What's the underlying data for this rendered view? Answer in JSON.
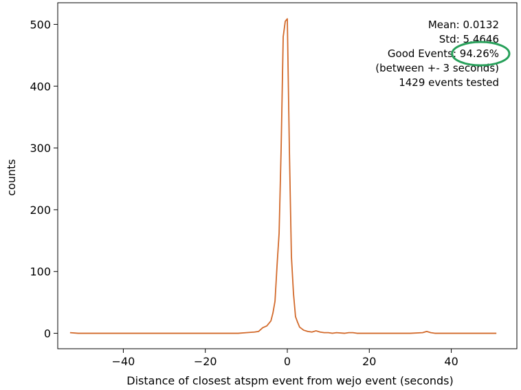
{
  "chart_data": {
    "type": "line",
    "title": "",
    "xlabel": "Distance of closest atspm event from wejo event (seconds)",
    "ylabel": "counts",
    "xlim": [
      -56,
      56
    ],
    "ylim": [
      -25,
      535
    ],
    "xticks": [
      -40,
      -20,
      0,
      20,
      40
    ],
    "xtick_labels": [
      "−40",
      "−20",
      "0",
      "20",
      "40"
    ],
    "yticks": [
      0,
      100,
      200,
      300,
      400,
      500
    ],
    "ytick_labels": [
      "0",
      "100",
      "200",
      "300",
      "400",
      "500"
    ],
    "grid": false,
    "series": [
      {
        "color": "#d2692a",
        "x": [
          -53,
          -51,
          -45,
          -40,
          -35,
          -30,
          -25,
          -20,
          -15,
          -12,
          -10,
          -8,
          -7,
          -6,
          -5,
          -4,
          -3.5,
          -3,
          -2.5,
          -2,
          -1.5,
          -1,
          -0.5,
          0,
          0.5,
          1,
          1.5,
          2,
          2.5,
          3,
          4,
          5,
          6,
          7,
          8,
          9,
          10,
          11,
          12,
          14,
          15,
          16,
          17,
          18,
          20,
          25,
          30,
          33,
          34,
          35,
          36,
          40,
          45,
          51
        ],
        "y": [
          1,
          0,
          0,
          0,
          0,
          0,
          0,
          0,
          0,
          0,
          1,
          2,
          3,
          9,
          12,
          20,
          33,
          52,
          110,
          162,
          300,
          480,
          505,
          509,
          300,
          125,
          65,
          27,
          18,
          10,
          5,
          3,
          2,
          4,
          2,
          1,
          1,
          0,
          1,
          0,
          1,
          1,
          0,
          0,
          0,
          0,
          0,
          1,
          3,
          1,
          0,
          0,
          0,
          0
        ]
      }
    ],
    "annotations": [
      "Mean: 0.0132",
      "Std: 5.4646",
      "Good Events: 94.26%",
      "(between +- 3 seconds)",
      "1429 events tested"
    ],
    "highlight": {
      "target": "94.26%",
      "shape": "ellipse",
      "color": "#27a05a"
    }
  }
}
